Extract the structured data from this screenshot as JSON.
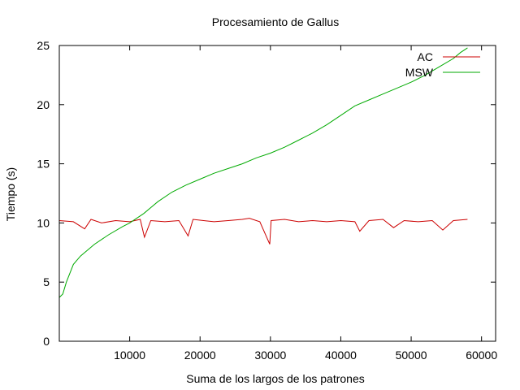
{
  "chart_data": {
    "type": "line",
    "title": "Procesamiento de Gallus",
    "xlabel": "Suma de los largos de los patrones",
    "ylabel": "Tiempo (s)",
    "xlim": [
      0,
      62000
    ],
    "ylim": [
      0,
      25
    ],
    "x_ticks": [
      10000,
      20000,
      30000,
      40000,
      50000,
      60000
    ],
    "x_tick_labels": [
      "10000",
      "20000",
      "30000",
      "40000",
      "50000",
      "60000"
    ],
    "y_ticks": [
      0,
      5,
      10,
      15,
      20,
      25
    ],
    "y_tick_labels": [
      "0",
      "5",
      "10",
      "15",
      "20",
      "25"
    ],
    "grid": false,
    "legend_position": "top-right",
    "series": [
      {
        "name": "AC",
        "color": "#cc0000",
        "x": [
          0,
          2000,
          3600,
          4500,
          6000,
          8000,
          10000,
          11500,
          12100,
          13000,
          15000,
          17000,
          18300,
          19000,
          20500,
          22000,
          24000,
          26000,
          27000,
          28500,
          29900,
          30100,
          32000,
          34000,
          36000,
          38000,
          40000,
          42000,
          42700,
          44000,
          46000,
          47500,
          49000,
          51000,
          53000,
          54500,
          56000,
          58000
        ],
        "y": [
          10.2,
          10.1,
          9.5,
          10.3,
          10.0,
          10.2,
          10.1,
          10.3,
          8.8,
          10.2,
          10.1,
          10.2,
          8.9,
          10.3,
          10.2,
          10.1,
          10.2,
          10.3,
          10.4,
          10.1,
          8.2,
          10.2,
          10.3,
          10.1,
          10.2,
          10.1,
          10.2,
          10.1,
          9.3,
          10.2,
          10.3,
          9.6,
          10.2,
          10.1,
          10.2,
          9.4,
          10.2,
          10.3
        ]
      },
      {
        "name": "MSW",
        "color": "#00aa00",
        "x": [
          0,
          500,
          1000,
          2000,
          3000,
          5000,
          7000,
          9000,
          10000,
          12000,
          14000,
          16000,
          18000,
          20000,
          22000,
          24000,
          26000,
          28000,
          30000,
          32000,
          34000,
          36000,
          38000,
          40000,
          42000,
          44000,
          46000,
          48000,
          50000,
          52000,
          54000,
          56000,
          57000,
          58000
        ],
        "y": [
          3.7,
          4.0,
          5.0,
          6.5,
          7.2,
          8.2,
          9.0,
          9.7,
          10.0,
          10.8,
          11.8,
          12.6,
          13.2,
          13.7,
          14.2,
          14.6,
          15.0,
          15.5,
          15.9,
          16.4,
          17.0,
          17.6,
          18.3,
          19.1,
          19.9,
          20.4,
          20.9,
          21.4,
          21.9,
          22.5,
          23.2,
          23.9,
          24.4,
          24.8
        ]
      }
    ]
  }
}
